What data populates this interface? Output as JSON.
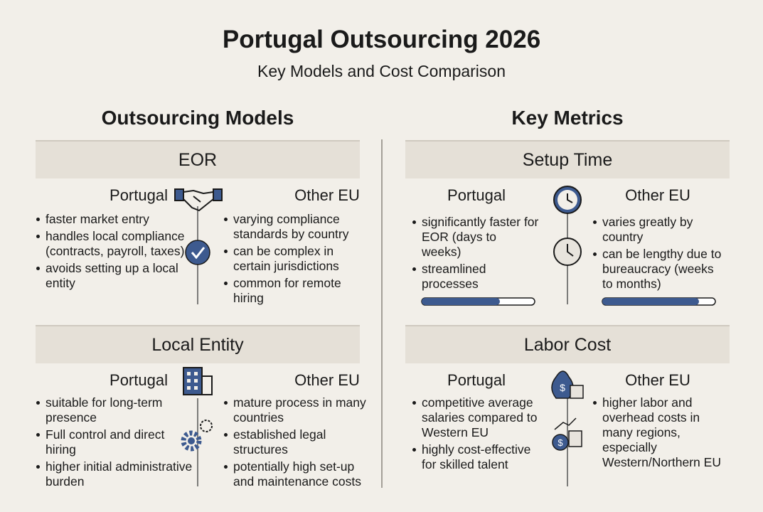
{
  "header": {
    "title": "Portugal Outsourcing 2026",
    "subtitle": "Key Models and Cost Comparison"
  },
  "columns": [
    {
      "heading": "Outsourcing Models",
      "sections": [
        {
          "title": "EOR",
          "groups": [
            {
              "label": "Portugal",
              "items": [
                "faster market entry",
                "handles local compliance (contracts, payroll, taxes)",
                "avoids setting up a local entity"
              ]
            },
            {
              "label": "Other EU",
              "items": [
                "varying compliance standards by country",
                "can be complex in certain jurisdictions",
                "common for remote hiring"
              ]
            }
          ]
        },
        {
          "title": "Local Entity",
          "groups": [
            {
              "label": "Portugal",
              "items": [
                "suitable for long-term presence",
                "Full control and direct hiring",
                "higher initial administrative burden"
              ]
            },
            {
              "label": "Other EU",
              "items": [
                "mature process in many countries",
                "established legal structures",
                "potentially high set-up and maintenance costs"
              ]
            }
          ]
        }
      ]
    },
    {
      "heading": "Key Metrics",
      "sections": [
        {
          "title": "Setup Time",
          "groups": [
            {
              "label": "Portugal",
              "items": [
                "significantly faster for EOR (days to weeks)",
                "streamlined processes"
              ]
            },
            {
              "label": "Other EU",
              "items": [
                "varies greatly by country",
                "can be lengthy due to bureaucracy (weeks to months)"
              ]
            }
          ]
        },
        {
          "title": "Labor Cost",
          "groups": [
            {
              "label": "Portugal",
              "items": [
                "competitive average salaries compared to Western EU",
                "highly cost-effective for skilled talent"
              ]
            },
            {
              "label": "Other EU",
              "items": [
                "higher labor and overhead costs in many regions, especially Western/Northern EU"
              ]
            }
          ]
        }
      ]
    }
  ]
}
